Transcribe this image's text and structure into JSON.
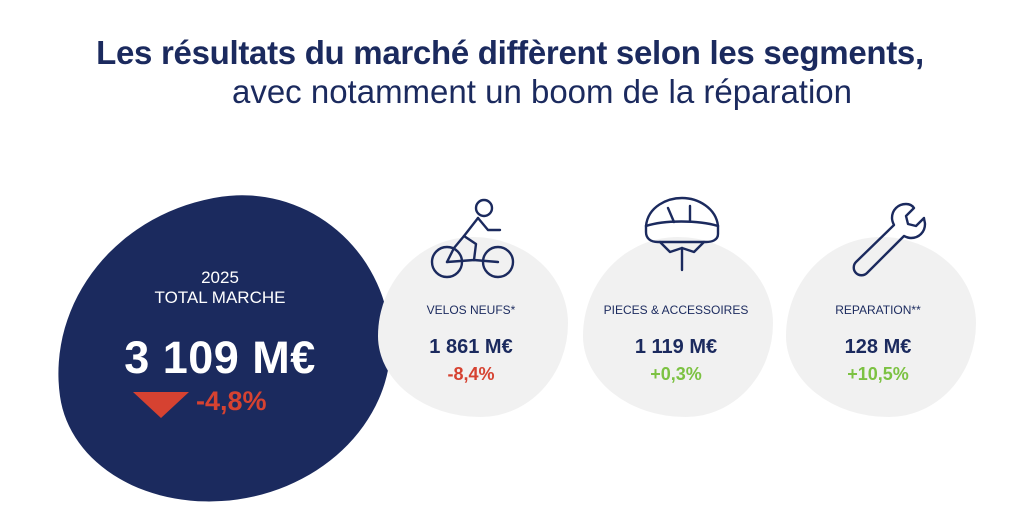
{
  "header": {
    "title_line1": "Les résultats du marché diffèrent selon les segments,",
    "title_line2": "avec notamment un boom de la réparation"
  },
  "total": {
    "year": "2025",
    "label": "TOTAL MARCHE",
    "value": "3 109 M€",
    "change": "-4,8%",
    "change_icon": "down-triangle-icon",
    "blob_color": "#1b2a5e",
    "negative_color": "#d64231"
  },
  "segments": [
    {
      "label": "VELOS NEUFS*",
      "value": "1 861 M€",
      "change": "-8,4%",
      "icon": "cyclist-icon",
      "change_color": "#d64231"
    },
    {
      "label": "PIECES & ACCESSOIRES",
      "value": "1 119 M€",
      "change": "+0,3%",
      "icon": "helmet-icon",
      "change_color": "#7cc242"
    },
    {
      "label": "REPARATION**",
      "value": "128 M€",
      "change": "+10,5%",
      "icon": "wrench-icon",
      "change_color": "#7cc242"
    }
  ]
}
